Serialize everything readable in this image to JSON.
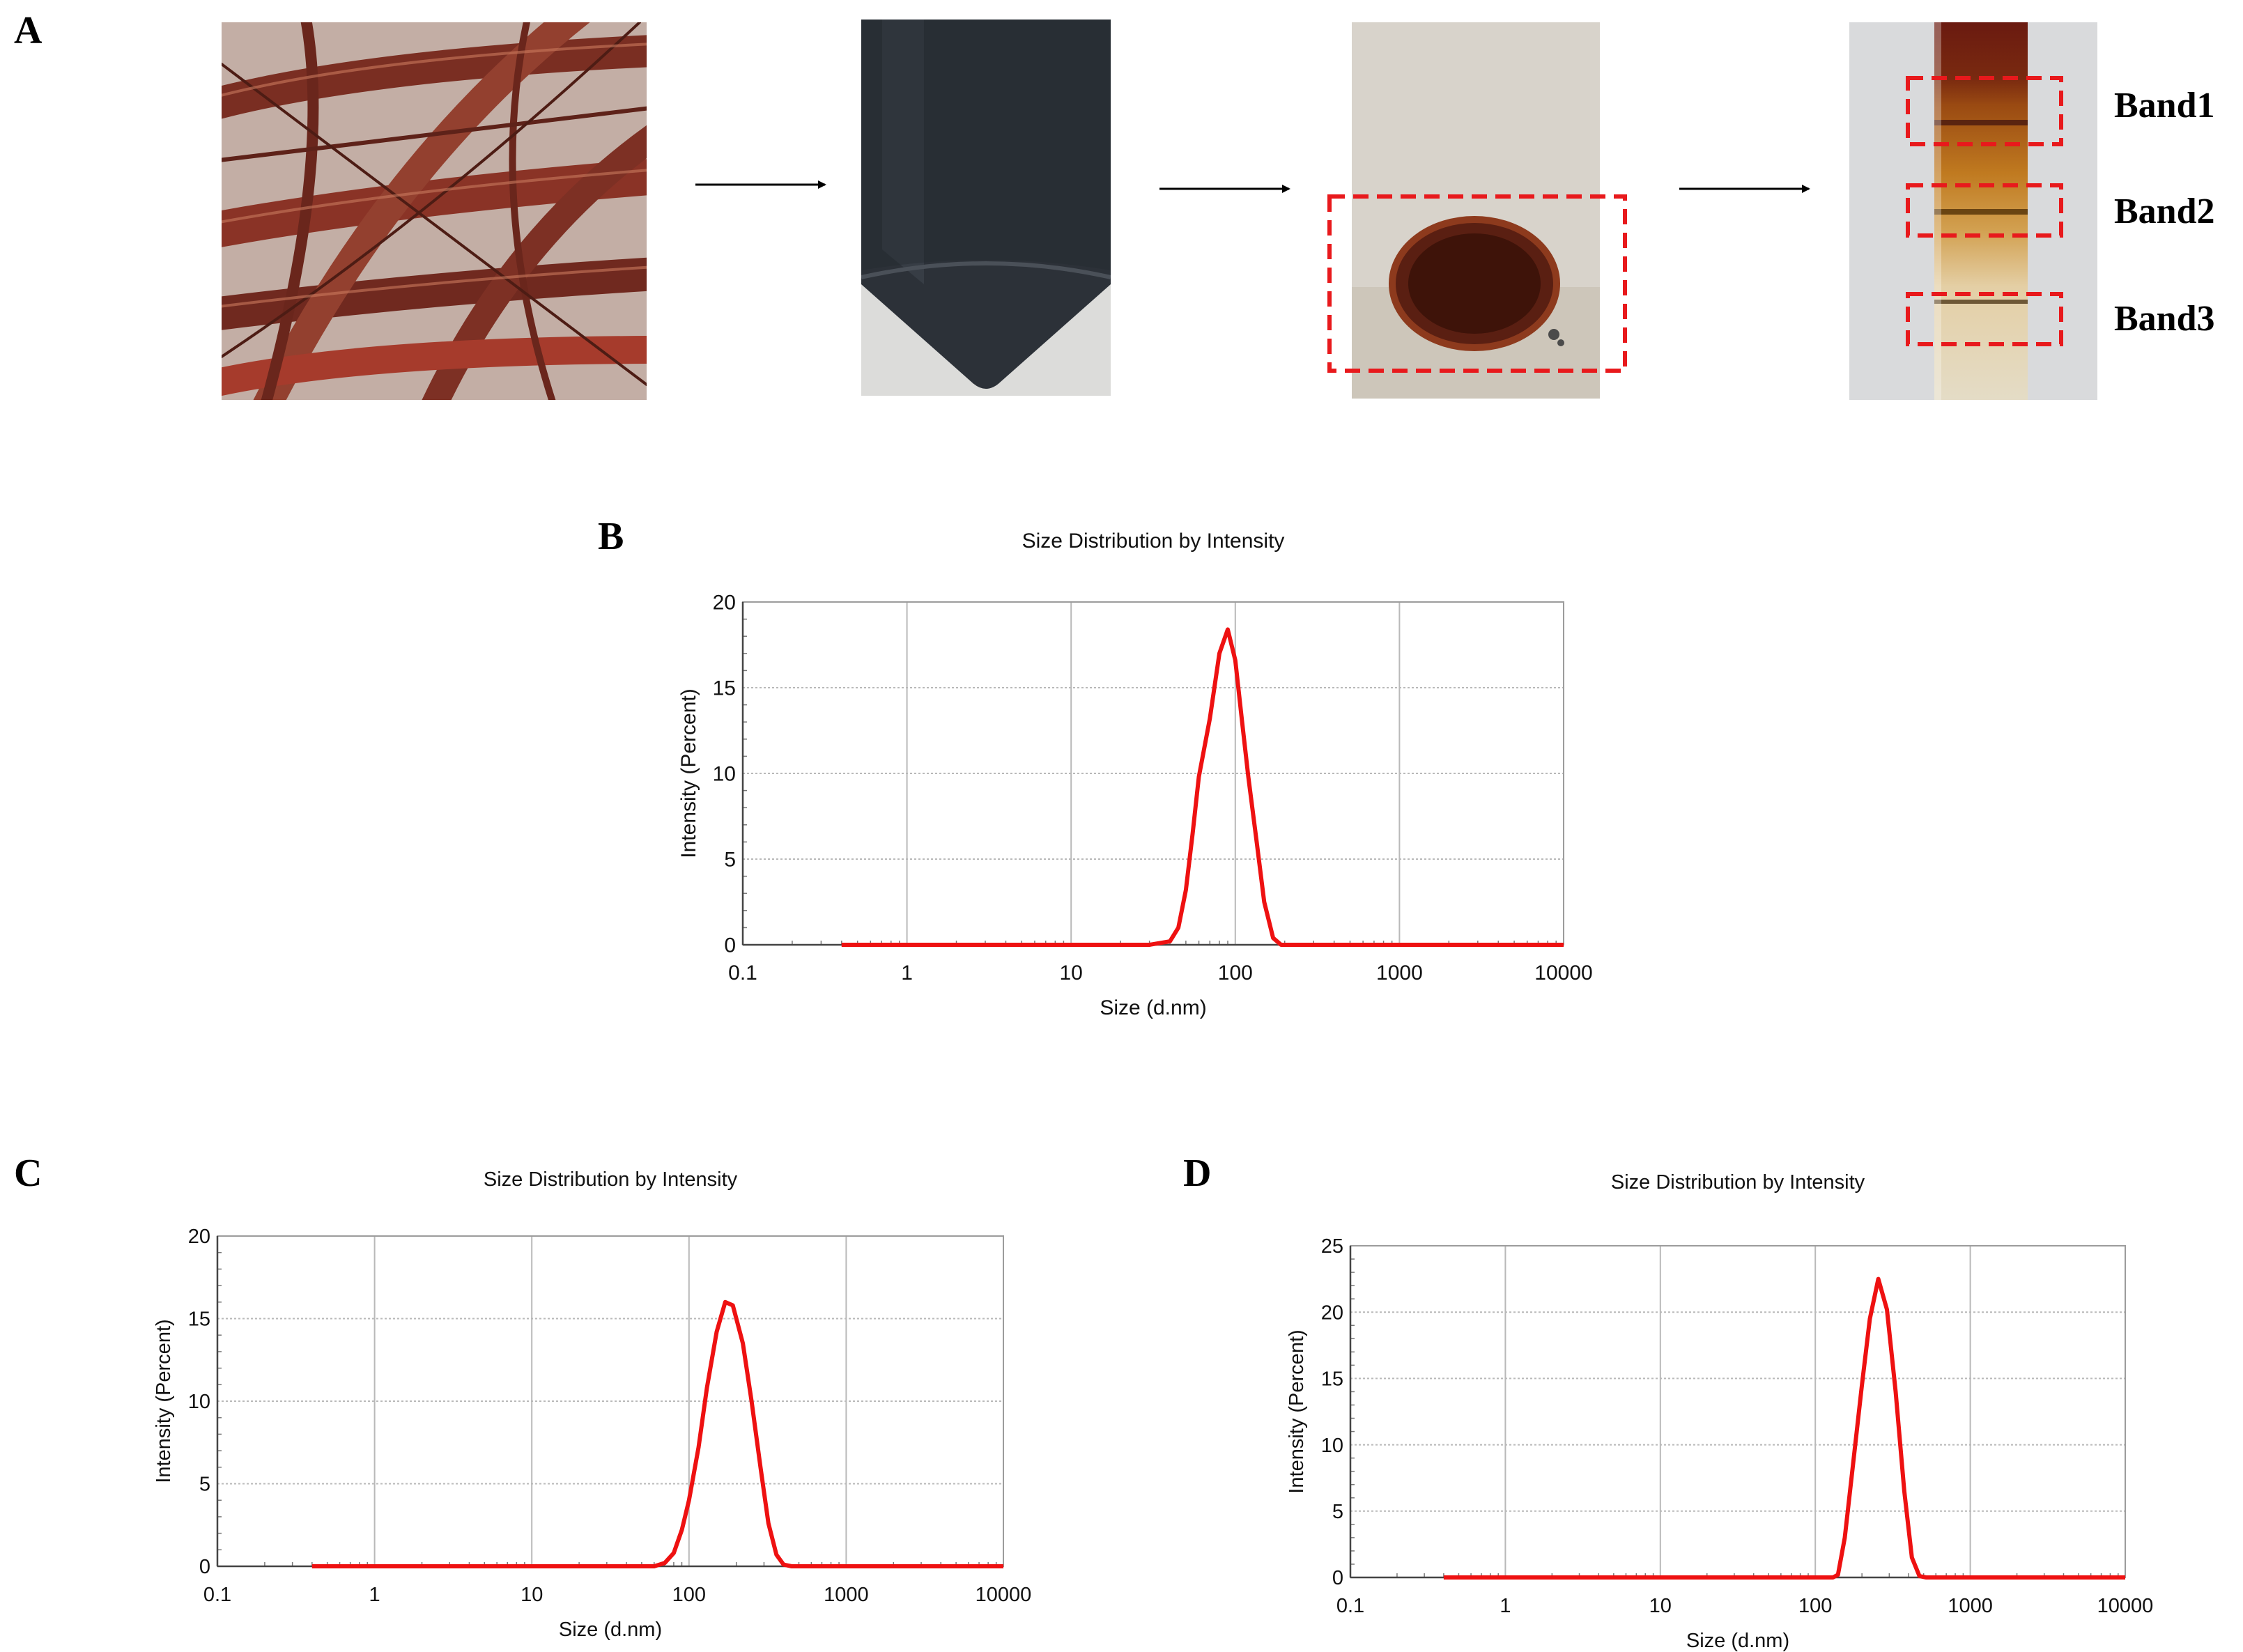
{
  "panels": {
    "a": "A",
    "b": "B",
    "c": "C",
    "d": "D"
  },
  "bands": [
    "Band1",
    "Band2",
    "Band3"
  ],
  "photos": [
    "red-root-photo",
    "centrifuge-tube-photo",
    "pellet-photo",
    "density-gradient-tube-photo"
  ],
  "colors": {
    "curve": "#ee1111",
    "dashed_box": "#e8191c",
    "grid": "#b9b9b9"
  },
  "chart_data": [
    {
      "panel": "B",
      "type": "line",
      "title": "Size Distribution by Intensity",
      "xlabel": "Size (d.nm)",
      "ylabel": "Intensity (Percent)",
      "xscale": "log",
      "xlim": [
        0.1,
        10000
      ],
      "ylim": [
        0,
        20
      ],
      "xticks": [
        "0.1",
        "1",
        "10",
        "100",
        "1000",
        "10000"
      ],
      "yticks": [
        "0",
        "5",
        "10",
        "15",
        "20"
      ],
      "grid": true,
      "x": [
        0.4,
        30,
        40,
        45,
        50,
        55,
        60,
        70,
        80,
        90,
        100,
        110,
        120,
        135,
        150,
        170,
        190,
        220,
        300,
        1000,
        10000
      ],
      "y": [
        0,
        0,
        0.2,
        1.0,
        3.2,
        6.5,
        9.8,
        13.2,
        17.0,
        18.4,
        16.6,
        13.0,
        9.8,
        6.0,
        2.5,
        0.4,
        0,
        0,
        0,
        0,
        0
      ]
    },
    {
      "panel": "C",
      "type": "line",
      "title": "Size Distribution by Intensity",
      "xlabel": "Size (d.nm)",
      "ylabel": "Intensity (Percent)",
      "xscale": "log",
      "xlim": [
        0.1,
        10000
      ],
      "ylim": [
        0,
        20
      ],
      "xticks": [
        "0.1",
        "1",
        "10",
        "100",
        "1000",
        "10000"
      ],
      "yticks": [
        "0",
        "5",
        "10",
        "15",
        "20"
      ],
      "grid": true,
      "x": [
        0.4,
        60,
        70,
        80,
        90,
        100,
        115,
        130,
        150,
        170,
        190,
        220,
        250,
        285,
        320,
        360,
        400,
        450,
        600,
        10000
      ],
      "y": [
        0,
        0,
        0.2,
        0.8,
        2.2,
        4.0,
        7.2,
        10.8,
        14.2,
        16.0,
        15.8,
        13.5,
        10.0,
        6.0,
        2.6,
        0.7,
        0.1,
        0,
        0,
        0
      ]
    },
    {
      "panel": "D",
      "type": "line",
      "title": "Size Distribution by Intensity",
      "xlabel": "Size (d.nm)",
      "ylabel": "Intensity (Percent)",
      "xscale": "log",
      "xlim": [
        0.1,
        10000
      ],
      "ylim": [
        0,
        25
      ],
      "xticks": [
        "0.1",
        "1",
        "10",
        "100",
        "1000",
        "10000"
      ],
      "yticks": [
        "0",
        "5",
        "10",
        "15",
        "20",
        "25"
      ],
      "grid": true,
      "x": [
        0.4,
        130,
        140,
        155,
        175,
        200,
        225,
        255,
        290,
        330,
        375,
        420,
        470,
        520,
        600,
        10000
      ],
      "y": [
        0,
        0,
        0.2,
        3.0,
        8.5,
        14.5,
        19.5,
        22.5,
        20.2,
        14.0,
        6.5,
        1.5,
        0.1,
        0,
        0,
        0
      ]
    }
  ]
}
